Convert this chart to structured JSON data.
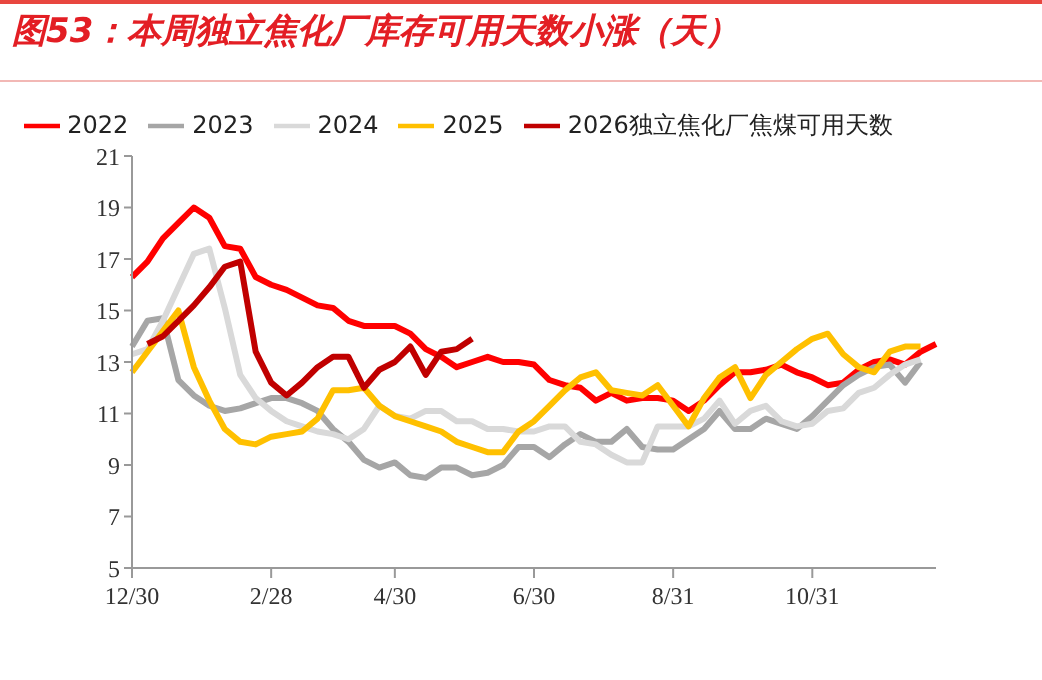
{
  "chart_data": {
    "type": "line",
    "title": "图53：本周独立焦化厂库存可用天数小涨（天）",
    "categories": [
      "12/30",
      null,
      null,
      null,
      null,
      null,
      null,
      null,
      null,
      "2/28",
      null,
      null,
      null,
      null,
      null,
      null,
      null,
      "4/30",
      null,
      null,
      null,
      null,
      null,
      null,
      null,
      null,
      "6/30",
      null,
      null,
      null,
      null,
      null,
      null,
      null,
      null,
      "8/31",
      null,
      null,
      null,
      null,
      null,
      null,
      null,
      null,
      "10/31",
      null,
      null,
      null,
      null,
      null,
      null,
      null,
      null
    ],
    "ylim": [
      5,
      21
    ],
    "yticks": [
      5,
      7,
      9,
      11,
      13,
      15,
      17,
      19,
      21
    ],
    "grid": false,
    "legend": "top",
    "marker": "none",
    "line_style": "solid",
    "series": [
      {
        "name": "2022",
        "color": "#ff0000",
        "values": [
          16.3,
          16.9,
          17.8,
          18.4,
          19.0,
          18.6,
          17.5,
          17.4,
          16.3,
          16.0,
          15.8,
          15.5,
          15.2,
          15.1,
          14.6,
          14.4,
          14.4,
          14.4,
          14.1,
          13.5,
          13.2,
          12.8,
          13.0,
          13.2,
          13.0,
          13.0,
          12.9,
          12.3,
          12.1,
          12.0,
          11.5,
          11.8,
          11.5,
          11.6,
          11.6,
          11.5,
          11.1,
          11.5,
          12.1,
          12.6,
          12.6,
          12.7,
          12.9,
          12.6,
          12.4,
          12.1,
          12.2,
          12.7,
          13.0,
          13.1,
          12.9,
          13.4,
          13.7
        ]
      },
      {
        "name": "2023",
        "color": "#a6a6a6",
        "values": [
          13.6,
          14.6,
          14.7,
          12.3,
          11.7,
          11.3,
          11.1,
          11.2,
          11.4,
          11.6,
          11.6,
          11.4,
          11.1,
          10.4,
          9.9,
          9.2,
          8.9,
          9.1,
          8.6,
          8.5,
          8.9,
          8.9,
          8.6,
          8.7,
          9.0,
          9.7,
          9.7,
          9.3,
          9.8,
          10.2,
          9.9,
          9.9,
          10.4,
          9.7,
          9.6,
          9.6,
          10.0,
          10.4,
          11.1,
          10.4,
          10.4,
          10.8,
          10.6,
          10.4,
          10.9,
          11.5,
          12.1,
          12.5,
          12.8,
          12.9,
          12.2,
          13.0,
          null
        ]
      },
      {
        "name": "2024",
        "color": "#d9d9d9",
        "values": [
          13.3,
          13.5,
          14.6,
          15.9,
          17.2,
          17.4,
          15.1,
          12.5,
          11.6,
          11.1,
          10.7,
          10.5,
          10.3,
          10.2,
          10.0,
          10.4,
          11.3,
          10.9,
          10.8,
          11.1,
          11.1,
          10.7,
          10.7,
          10.4,
          10.4,
          10.3,
          10.3,
          10.5,
          10.5,
          9.9,
          9.8,
          9.4,
          9.1,
          9.1,
          10.5,
          10.5,
          10.5,
          10.8,
          11.5,
          10.6,
          11.1,
          11.3,
          10.7,
          10.5,
          10.6,
          11.1,
          11.2,
          11.8,
          12.0,
          12.5,
          12.9,
          13.1,
          null
        ]
      },
      {
        "name": "2025",
        "color": "#ffc000",
        "values": [
          12.6,
          13.4,
          14.2,
          15.0,
          12.8,
          11.5,
          10.4,
          9.9,
          9.8,
          10.1,
          10.2,
          10.3,
          10.8,
          11.9,
          11.9,
          12.0,
          11.3,
          10.9,
          10.7,
          10.5,
          10.3,
          9.9,
          9.7,
          9.5,
          9.5,
          10.3,
          10.7,
          11.3,
          11.9,
          12.4,
          12.6,
          11.9,
          11.8,
          11.7,
          12.1,
          11.3,
          10.5,
          11.6,
          12.4,
          12.8,
          11.6,
          12.5,
          13.0,
          13.5,
          13.9,
          14.1,
          13.3,
          12.8,
          12.6,
          13.4,
          13.6,
          13.6,
          null
        ]
      },
      {
        "name": "2026独立焦化厂焦煤可用天数",
        "color": "#c00000",
        "values": [
          null,
          13.7,
          14.0,
          14.6,
          15.2,
          15.9,
          16.7,
          16.9,
          13.4,
          12.2,
          11.7,
          12.2,
          12.8,
          13.2,
          13.2,
          12.0,
          12.7,
          13.0,
          13.6,
          12.5,
          13.4,
          13.5,
          13.9,
          null,
          null,
          null,
          null,
          null,
          null,
          null,
          null,
          null,
          null,
          null,
          null,
          null,
          null,
          null,
          null,
          null,
          null,
          null,
          null,
          null,
          null,
          null,
          null,
          null,
          null,
          null,
          null,
          null,
          null
        ]
      }
    ]
  }
}
